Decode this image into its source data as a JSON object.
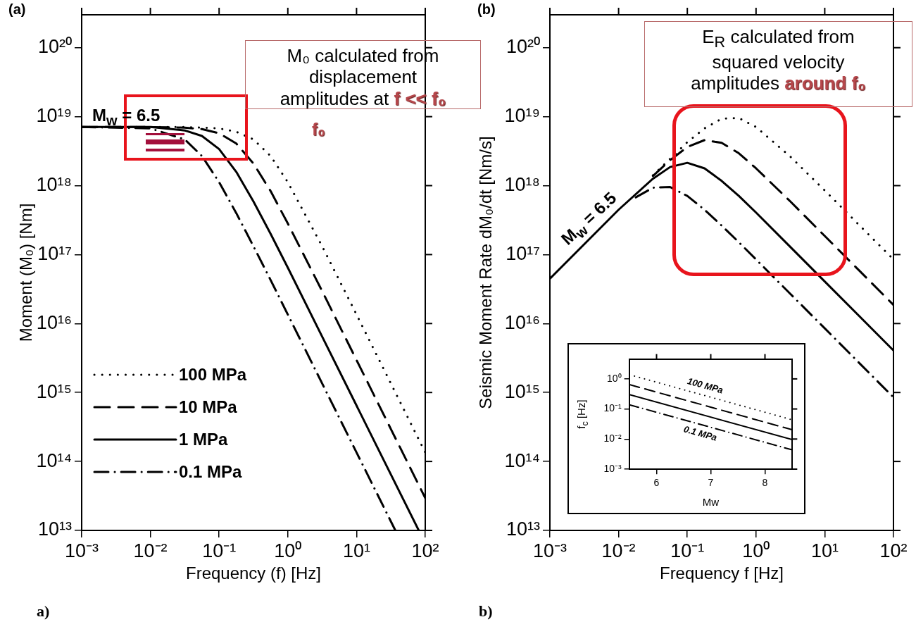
{
  "chart_data": [
    {
      "type": "line",
      "xlabel": "Frequency (f) [Hz]",
      "ylabel": "Moment (M₀) [Nm]",
      "log": "xy",
      "legend": "bottom left",
      "annotations": [
        "(a)",
        "M₀ calculated from displacement amplitudes at",
        "f << f₀",
        "f₀",
        "a)",
        "M$_{w}$ = 6.5"
      ],
      "x": [
        0.001,
        0.01,
        0.0316,
        0.0562,
        0.1,
        0.178,
        0.316,
        0.562,
        1,
        3.16,
        10,
        31.6,
        100
      ],
      "series": [
        {
          "name": "100 MPa",
          "color": "#000000",
          "line_style": "dotted",
          "values": [
            7.08e+18,
            7.08e+18,
            7.08e+18,
            6.92e+18,
            6.76e+18,
            6.03e+18,
            4.68e+18,
            2.69e+18,
            1.12e+18,
            1.32e+17,
            1.35e+16,
            1350000000000000.0,
            135000000000000.0
          ]
        },
        {
          "name": "10 MPa",
          "color": "#000000",
          "line_style": "dashed",
          "values": [
            7.08e+18,
            7.08e+18,
            6.92e+18,
            6.61e+18,
            5.75e+18,
            4.07e+18,
            2.09e+18,
            8.32e+17,
            2.82e+17,
            2.95e+16,
            2950000000000000.0,
            295000000000000.0,
            29500000000000.0
          ]
        },
        {
          "name": "1 MPa",
          "color": "#000000",
          "line_style": "solid",
          "x": [
            0.001,
            0.01,
            0.0316,
            0.0562,
            0.1,
            0.178,
            0.316,
            0.562,
            1,
            3.16,
            10,
            31.6,
            80.4
          ],
          "values": [
            7.08e+18,
            7.08e+18,
            6.31e+18,
            5.25e+18,
            3.39e+18,
            1.58e+18,
            5.89e+17,
            2e+17,
            6.46e+16,
            6460000000000000.0,
            646000000000000.0,
            64600000000000.0,
            10000000000000.0
          ]
        },
        {
          "name": "0.1 MPa",
          "color": "#000000",
          "line_style": "dashdot",
          "x": [
            0.001,
            0.01,
            0.0316,
            0.0562,
            0.1,
            0.178,
            0.316,
            0.562,
            1,
            3.16,
            10,
            31.6,
            36.7
          ],
          "values": [
            7.08e+18,
            6.76e+18,
            4.68e+18,
            2.69e+18,
            1.12e+18,
            3.98e+17,
            1.32e+17,
            4.27e+16,
            1.35e+16,
            1350000000000000.0,
            135000000000000.0,
            13500000000000.0,
            10000000000000.0
          ]
        }
      ],
      "xlim": [
        0.001,
        100
      ],
      "ylim": [
        10000000000000.0,
        3e+20
      ],
      "xticks": [
        {
          "value": 0.001,
          "label": "10⁻³"
        },
        {
          "value": 0.01,
          "label": "10⁻²"
        },
        {
          "value": 0.1,
          "label": "10⁻¹"
        },
        {
          "value": 1,
          "label": "10⁰"
        },
        {
          "value": 10,
          "label": "10¹"
        },
        {
          "value": 100,
          "label": "10²"
        }
      ],
      "yticks": [
        {
          "value": 10000000000000.0,
          "label": "10¹³"
        },
        {
          "value": 100000000000000.0,
          "label": "10¹⁴"
        },
        {
          "value": 1000000000000000.0,
          "label": "10¹⁵"
        },
        {
          "value": 1e+16,
          "label": "10¹⁶"
        },
        {
          "value": 1e+17,
          "label": "10¹⁷"
        },
        {
          "value": 1e+18,
          "label": "10¹⁸"
        },
        {
          "value": 1e+19,
          "label": "10¹⁹"
        },
        {
          "value": 1e+20,
          "label": "10²⁰"
        }
      ]
    },
    {
      "type": "line",
      "xlabel": "Frequency f [Hz]",
      "ylabel": "Seismic Moment Rate dM₀/dt [Nm/s]",
      "log": "xy",
      "annotations": [
        "(b)",
        "E$_{R}$ calculated from squared velocity amplitudes",
        "around f₀",
        "b)",
        "M$_{w}$ = 6.5"
      ],
      "x": [
        0.001,
        0.01,
        0.0316,
        0.0562,
        0.1,
        0.178,
        0.316,
        0.562,
        1,
        3.16,
        10,
        31.6,
        100
      ],
      "series": [
        {
          "color": "#000000",
          "line_style": "dotted",
          "x": [
            0.0316,
            0.0562,
            0.1,
            0.178,
            0.316,
            0.562,
            1,
            3.16,
            10,
            31.6,
            100
          ],
          "values": [
            1.41e+18,
            2.45e+18,
            4.27e+18,
            6.76e+18,
            9.33e+18,
            9.55e+18,
            7.08e+18,
            2.63e+18,
            8.51e+17,
            2.69e+17,
            8.51e+16
          ]
        },
        {
          "color": "#000000",
          "line_style": "dashed",
          "x": [
            0.0316,
            0.0562,
            0.1,
            0.178,
            0.316,
            0.562,
            1,
            3.16,
            10,
            31.6,
            100
          ],
          "values": [
            1.38e+18,
            2.34e+18,
            3.63e+18,
            4.57e+18,
            4.17e+18,
            2.95e+18,
            1.78e+18,
            5.89e+17,
            1.86e+17,
            5.89e+16,
            1.86e+16
          ]
        },
        {
          "color": "#000000",
          "line_style": "solid",
          "values": [
            4.47e+16,
            4.47e+17,
            1.26e+18,
            1.86e+18,
            2.14e+18,
            1.78e+18,
            1.17e+18,
            7.08e+17,
            4.07e+17,
            1.29e+17,
            4.07e+16,
            1.29e+16,
            4070000000000000.0
          ]
        },
        {
          "color": "#000000",
          "line_style": "dashdot",
          "x": [
            0.0178,
            0.0316,
            0.0562,
            0.1,
            0.178,
            0.316,
            0.562,
            1,
            3.16,
            10,
            31.6,
            100
          ],
          "values": [
            6.76e+17,
            9.33e+17,
            9.55e+17,
            7.08e+17,
            4.47e+17,
            2.63e+17,
            1.51e+17,
            8.51e+16,
            2.69e+16,
            8510000000000000.0,
            2690000000000000.0,
            851000000000000.0
          ]
        }
      ],
      "xlim": [
        0.001,
        100
      ],
      "ylim": [
        10000000000000.0,
        3e+20
      ],
      "xticks": [
        {
          "value": 0.001,
          "label": "10⁻³"
        },
        {
          "value": 0.01,
          "label": "10⁻²"
        },
        {
          "value": 0.1,
          "label": "10⁻¹"
        },
        {
          "value": 1,
          "label": "10⁰"
        },
        {
          "value": 10,
          "label": "10¹"
        },
        {
          "value": 100,
          "label": "10²"
        }
      ],
      "yticks": [
        {
          "value": 10000000000000.0,
          "label": "10¹³"
        },
        {
          "value": 100000000000000.0,
          "label": "10¹⁴"
        },
        {
          "value": 1000000000000000.0,
          "label": "10¹⁵"
        },
        {
          "value": 1e+16,
          "label": "10¹⁶"
        },
        {
          "value": 1e+17,
          "label": "10¹⁷"
        },
        {
          "value": 1e+18,
          "label": "10¹⁸"
        },
        {
          "value": 1e+19,
          "label": "10¹⁹"
        },
        {
          "value": 1e+20,
          "label": "10²⁰"
        }
      ]
    },
    {
      "type": "line",
      "xlabel": "Mw",
      "ylabel": "f$_{c}$ [Hz]",
      "log": "y",
      "x": [
        5.5,
        8.5
      ],
      "series": [
        {
          "name": "100 MPa",
          "color": "#000000",
          "line_style": "dotted",
          "values": [
            1.38,
            0.0437
          ]
        },
        {
          "color": "#000000",
          "line_style": "dashed",
          "values": [
            0.646,
            0.0204
          ]
        },
        {
          "color": "#000000",
          "line_style": "solid",
          "values": [
            0.3,
            0.0096
          ]
        },
        {
          "name": "0.1 MPa",
          "color": "#000000",
          "line_style": "dashdot",
          "values": [
            0.138,
            0.00437
          ]
        }
      ],
      "xlim": [
        5.5,
        8.5
      ],
      "ylim": [
        0.001,
        4.5
      ],
      "xticks": [
        6,
        7,
        8
      ],
      "yticks": [
        {
          "value": 0.001,
          "label": "10⁻³"
        },
        {
          "value": 0.01,
          "label": "10⁻²"
        },
        {
          "value": 0.1,
          "label": "10⁻¹"
        },
        {
          "value": 1,
          "label": "10⁰"
        }
      ]
    }
  ]
}
